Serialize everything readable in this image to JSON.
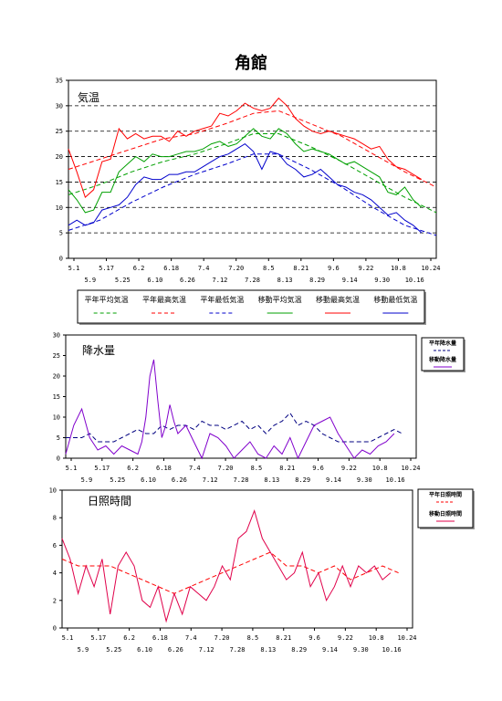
{
  "page": {
    "title": "角館"
  },
  "chart_data": [
    {
      "type": "line",
      "title": "気温",
      "xlim": [
        0,
        175
      ],
      "ylim": [
        0,
        35
      ],
      "yticks": [
        0,
        5,
        10,
        15,
        20,
        25,
        30,
        35
      ],
      "x_tick_labels_row1": [
        "5.1",
        "5.17",
        "6.2",
        "6.18",
        "7.4",
        "7.20",
        "8.5",
        "8.21",
        "9.6",
        "9.22",
        "10.8",
        "10.24"
      ],
      "x_tick_labels_row2": [
        "5.9",
        "5.25",
        "6.10",
        "6.26",
        "7.12",
        "7.28",
        "8.13",
        "8.29",
        "9.14",
        "9.30",
        "10.16"
      ],
      "grid": "horizontal-dashed",
      "legend": {
        "placement": "below",
        "entries": [
          "平年平均気温",
          "平年最高気温",
          "平年最低気温",
          "移動平均気温",
          "移動最高気温",
          "移動最低気温"
        ]
      },
      "series": [
        {
          "name": "平年平均気温",
          "style": "dashed",
          "color": "#00a000",
          "x": [
            0,
            15,
            30,
            45,
            60,
            75,
            88,
            100,
            115,
            130,
            145,
            160,
            175
          ],
          "values": [
            12.5,
            14.5,
            17,
            19,
            20.5,
            22.5,
            24.5,
            24.5,
            22,
            19,
            15.5,
            12,
            9
          ]
        },
        {
          "name": "平年最高気温",
          "style": "dashed",
          "color": "#ff0000",
          "x": [
            0,
            15,
            30,
            45,
            60,
            75,
            88,
            100,
            115,
            130,
            145,
            160,
            175
          ],
          "values": [
            17.5,
            19.5,
            21.5,
            23.5,
            24.5,
            26.5,
            28.5,
            29,
            26.5,
            24,
            20.5,
            17,
            14
          ]
        },
        {
          "name": "平年最低気温",
          "style": "dashed",
          "color": "#0000cc",
          "x": [
            0,
            15,
            30,
            45,
            60,
            75,
            88,
            100,
            115,
            130,
            145,
            160,
            175
          ],
          "values": [
            5.5,
            7.5,
            11,
            14,
            16.5,
            18.5,
            20.5,
            20.5,
            17.5,
            14,
            10,
            6.5,
            4.5
          ]
        },
        {
          "name": "移動平均気温",
          "style": "solid",
          "color": "#00a000",
          "x": [
            0,
            4,
            8,
            12,
            16,
            20,
            24,
            28,
            32,
            36,
            40,
            44,
            48,
            52,
            56,
            60,
            64,
            68,
            72,
            76,
            80,
            84,
            88,
            92,
            96,
            100,
            104,
            108,
            112,
            116,
            120,
            124,
            128,
            132,
            136,
            140,
            144,
            148,
            152,
            156,
            160,
            164,
            168
          ],
          "values": [
            13.5,
            11.5,
            9,
            9.5,
            13,
            13,
            17,
            18.5,
            20,
            19,
            20.5,
            20,
            20,
            20.5,
            21,
            21,
            21.5,
            22.5,
            23,
            22,
            22.5,
            24,
            25.5,
            24,
            23.5,
            25.5,
            24.5,
            22.5,
            21,
            21.5,
            21,
            20.5,
            19.5,
            18.5,
            19,
            18,
            17,
            16,
            13,
            12.5,
            14,
            11.5,
            10
          ]
        },
        {
          "name": "移動最高気温",
          "style": "solid",
          "color": "#ff0000",
          "x": [
            0,
            4,
            8,
            12,
            16,
            20,
            24,
            28,
            32,
            36,
            40,
            44,
            48,
            52,
            56,
            60,
            64,
            68,
            72,
            76,
            80,
            84,
            88,
            92,
            96,
            100,
            104,
            108,
            112,
            116,
            120,
            124,
            128,
            132,
            136,
            140,
            144,
            148,
            152,
            156,
            160,
            164,
            168
          ],
          "values": [
            21.5,
            17,
            12,
            13.5,
            19,
            19.5,
            25.5,
            23.5,
            24.5,
            23.5,
            24,
            24,
            23,
            25,
            24,
            25,
            25.5,
            26,
            28.5,
            28,
            29,
            30.5,
            29.5,
            29,
            29.5,
            31.5,
            30,
            27.5,
            26,
            25,
            24.5,
            25,
            24.5,
            24,
            23.5,
            22.5,
            21.5,
            22,
            19.5,
            18,
            17.5,
            16.5,
            15.5
          ]
        },
        {
          "name": "移動最低気温",
          "style": "solid",
          "color": "#0000cc",
          "x": [
            0,
            4,
            8,
            12,
            16,
            20,
            24,
            28,
            32,
            36,
            40,
            44,
            48,
            52,
            56,
            60,
            64,
            68,
            72,
            76,
            80,
            84,
            88,
            92,
            96,
            100,
            104,
            108,
            112,
            116,
            120,
            124,
            128,
            132,
            136,
            140,
            144,
            148,
            152,
            156,
            160,
            164,
            168
          ],
          "values": [
            6.5,
            7.5,
            6.5,
            7,
            9.5,
            10,
            10.5,
            12,
            14.5,
            16,
            15.5,
            15.5,
            16.5,
            16.5,
            17,
            17,
            18,
            19,
            20,
            20.5,
            21.5,
            22.5,
            21,
            17.5,
            21,
            20.5,
            18.5,
            17.5,
            16,
            16.5,
            17.5,
            16,
            14.5,
            14,
            13,
            12.5,
            11.5,
            10,
            8.5,
            9,
            7.5,
            6.5,
            5
          ]
        }
      ]
    },
    {
      "type": "line",
      "title": "降水量",
      "xlim": [
        0,
        175
      ],
      "ylim": [
        0,
        30
      ],
      "yticks": [
        0,
        5,
        10,
        15,
        20,
        25,
        30
      ],
      "x_tick_labels_row1": [
        "5.1",
        "5.17",
        "6.2",
        "6.18",
        "7.4",
        "7.20",
        "8.5",
        "8.21",
        "9.6",
        "9.22",
        "10.8",
        "10.24"
      ],
      "x_tick_labels_row2": [
        "5.9",
        "5.25",
        "6.10",
        "6.26",
        "7.12",
        "7.28",
        "8.13",
        "8.29",
        "9.14",
        "9.30",
        "10.16"
      ],
      "grid": "none",
      "legend": {
        "placement": "right",
        "entries": [
          "平年降水量",
          "移動降水量"
        ]
      },
      "series": [
        {
          "name": "平年降水量",
          "style": "dashed",
          "color": "#000080",
          "x": [
            0,
            8,
            12,
            16,
            20,
            24,
            28,
            32,
            36,
            40,
            44,
            48,
            52,
            56,
            60,
            64,
            68,
            72,
            76,
            80,
            84,
            88,
            92,
            96,
            100,
            104,
            108,
            112,
            116,
            120,
            124,
            128,
            132,
            136,
            140,
            144,
            148,
            152,
            156,
            160,
            164,
            168
          ],
          "values": [
            5,
            5,
            6,
            4,
            4,
            4,
            5,
            6,
            7,
            6,
            6,
            8,
            7,
            8,
            8,
            7,
            9,
            8,
            8,
            7,
            8,
            9,
            7,
            8,
            6,
            8,
            9,
            11,
            8,
            9,
            8,
            6,
            5,
            4,
            4,
            4,
            4,
            4,
            5,
            6,
            7,
            6
          ]
        },
        {
          "name": "移動降水量",
          "style": "solid",
          "color": "#8000cc",
          "x": [
            0,
            4,
            8,
            12,
            16,
            20,
            24,
            28,
            32,
            36,
            38,
            40,
            42,
            44,
            46,
            48,
            50,
            52,
            54,
            56,
            60,
            64,
            68,
            72,
            76,
            80,
            84,
            88,
            92,
            96,
            100,
            104,
            108,
            112,
            116,
            120,
            124,
            128,
            132,
            136,
            140,
            144,
            148,
            152,
            156,
            160,
            164
          ],
          "values": [
            1,
            8,
            12,
            5,
            2,
            3,
            1,
            3,
            2,
            1,
            4,
            10,
            20,
            24,
            14,
            5,
            8,
            13,
            9,
            6,
            8,
            4,
            0,
            6,
            5,
            3,
            0,
            2,
            4,
            1,
            0,
            3,
            1,
            5,
            0,
            4,
            8,
            9,
            10,
            6,
            3,
            0,
            2,
            1,
            3,
            4,
            6
          ]
        }
      ]
    },
    {
      "type": "line",
      "title": "日照時間",
      "xlim": [
        0,
        175
      ],
      "ylim": [
        0,
        10
      ],
      "yticks": [
        0,
        2,
        4,
        6,
        8,
        10
      ],
      "x_tick_labels_row1": [
        "5.1",
        "5.17",
        "6.2",
        "6.18",
        "7.4",
        "7.20",
        "8.5",
        "8.21",
        "9.6",
        "9.22",
        "10.8",
        "10.24"
      ],
      "x_tick_labels_row2": [
        "5.9",
        "5.25",
        "6.10",
        "6.26",
        "7.12",
        "7.28",
        "8.13",
        "8.29",
        "9.14",
        "9.30",
        "10.16"
      ],
      "grid": "none",
      "legend": {
        "placement": "right",
        "entries": [
          "平年日照時間",
          "移動日照時間"
        ]
      },
      "series": [
        {
          "name": "平年日照時間",
          "style": "dashed",
          "color": "#ff0000",
          "x": [
            0,
            8,
            16,
            24,
            32,
            40,
            48,
            56,
            64,
            72,
            80,
            88,
            96,
            104,
            112,
            120,
            128,
            136,
            144,
            152,
            160,
            168
          ],
          "values": [
            5,
            4.5,
            4.5,
            4.5,
            4,
            3.5,
            3,
            2.5,
            3,
            3.5,
            4,
            4.5,
            5,
            5.5,
            4.5,
            4.5,
            4,
            4.5,
            3.5,
            4,
            4.5,
            4
          ]
        },
        {
          "name": "移動日照時間",
          "style": "solid",
          "color": "#e0004a",
          "x": [
            0,
            4,
            8,
            12,
            16,
            20,
            24,
            28,
            32,
            36,
            40,
            44,
            48,
            52,
            56,
            60,
            64,
            68,
            72,
            76,
            80,
            84,
            88,
            92,
            96,
            100,
            104,
            108,
            112,
            116,
            120,
            124,
            128,
            132,
            136,
            140,
            144,
            148,
            152,
            156,
            160,
            164
          ],
          "values": [
            6.5,
            5,
            2.5,
            4.5,
            3,
            5,
            1,
            4.5,
            5.5,
            4.5,
            2,
            1.5,
            3,
            0.5,
            2.5,
            1,
            3,
            2.5,
            2,
            3,
            4.5,
            3.5,
            6.5,
            7,
            8.5,
            6.5,
            5.5,
            4.5,
            3.5,
            4,
            5.5,
            3,
            4,
            2,
            3,
            4.5,
            3,
            4.5,
            4,
            4.5,
            3.5,
            4
          ]
        }
      ]
    }
  ]
}
